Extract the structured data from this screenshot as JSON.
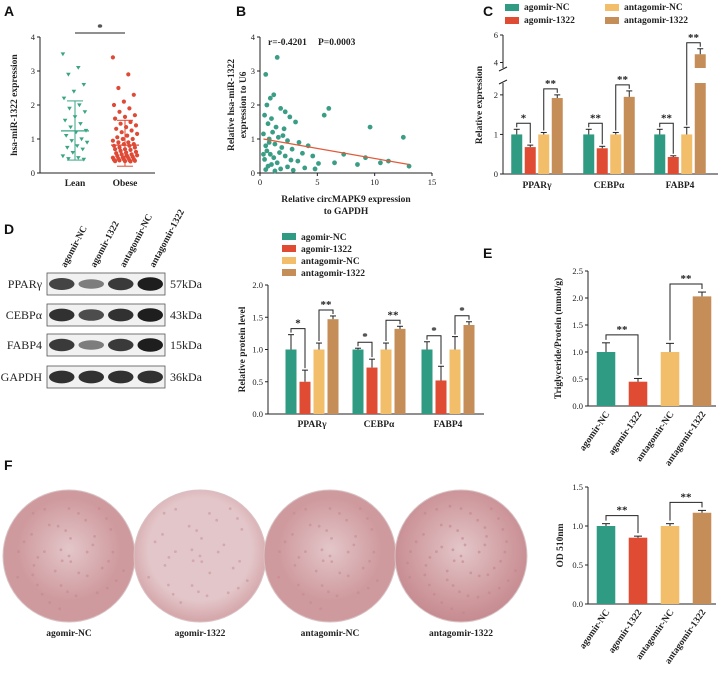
{
  "colors": {
    "teal": "#2e9b82",
    "red": "#e04b34",
    "yellow": "#f2be6a",
    "brown": "#c58d57",
    "scatter": "#3a9d86",
    "fit": "#e25a3a",
    "lean": "#3aa585",
    "obese": "#de4a36",
    "dish_base": "#cf9a9e",
    "dish_light": "#e3c6c9",
    "dish_dark": "#c2868c"
  },
  "panel_labels": [
    "A",
    "B",
    "C",
    "D",
    "E",
    "F"
  ],
  "conditions": [
    "agomir-NC",
    "agomir-1322",
    "antagomir-NC",
    "antagomir-1322"
  ],
  "chart_data": [
    {
      "id": "A",
      "type": "scatter",
      "title": "",
      "ylabel": "hsa-miR-1322 expression",
      "xlabel": "",
      "categories": [
        "Lean",
        "Obese"
      ],
      "ylim": [
        0,
        4
      ],
      "yticks": [
        0,
        1,
        2,
        3,
        4
      ],
      "groups": [
        {
          "name": "Lean",
          "mean": 1.24,
          "sd_low": 0.38,
          "sd_high": 2.12,
          "points": [
            3.5,
            3.1,
            2.9,
            2.6,
            2.4,
            2.2,
            2.0,
            1.9,
            1.8,
            1.65,
            1.55,
            1.45,
            1.35,
            1.25,
            1.2,
            1.1,
            1.0,
            0.95,
            0.9,
            0.8,
            0.75,
            0.7,
            0.6,
            0.5,
            0.45,
            0.42,
            0.4
          ]
        },
        {
          "name": "Obese",
          "mean": 0.82,
          "sd_low": 0.2,
          "sd_high": 1.55,
          "points": [
            3.4,
            2.9,
            2.5,
            2.3,
            2.1,
            2.0,
            1.9,
            1.8,
            1.7,
            1.65,
            1.6,
            1.5,
            1.45,
            1.4,
            1.35,
            1.3,
            1.25,
            1.2,
            1.15,
            1.1,
            1.05,
            1.0,
            1.0,
            0.95,
            0.9,
            0.9,
            0.85,
            0.85,
            0.8,
            0.8,
            0.75,
            0.75,
            0.7,
            0.7,
            0.68,
            0.65,
            0.62,
            0.6,
            0.58,
            0.55,
            0.55,
            0.52,
            0.5,
            0.5,
            0.48,
            0.46,
            0.45,
            0.44,
            0.42,
            0.41,
            0.4,
            0.39,
            0.38,
            0.37,
            0.36,
            0.35,
            0.35,
            0.34
          ]
        }
      ],
      "significance": "*"
    },
    {
      "id": "B",
      "type": "scatter",
      "title": "",
      "annotation_r": "r=-0.4201",
      "annotation_p": "P=0.0003",
      "xlabel_line1": "Relative circMAPK9 expression",
      "xlabel_line2": "to GAPDH",
      "ylabel_line1": "Relative hsa-miR-1322",
      "ylabel_line2": "expression to U6",
      "xlim": [
        0,
        15
      ],
      "ylim": [
        0,
        4
      ],
      "xticks": [
        0,
        5,
        10,
        15
      ],
      "yticks": [
        0,
        1,
        2,
        3,
        4
      ],
      "fit": {
        "x": [
          0.3,
          13
        ],
        "y": [
          1.0,
          0.25
        ]
      },
      "points": [
        [
          1.5,
          3.4
        ],
        [
          0.5,
          2.9
        ],
        [
          1.2,
          2.3
        ],
        [
          0.9,
          2.2
        ],
        [
          0.6,
          2.0
        ],
        [
          1.8,
          1.9
        ],
        [
          2.2,
          1.8
        ],
        [
          0.4,
          1.7
        ],
        [
          2.6,
          1.65
        ],
        [
          1.0,
          1.6
        ],
        [
          3.1,
          1.5
        ],
        [
          0.7,
          1.45
        ],
        [
          1.4,
          1.35
        ],
        [
          5.6,
          1.7
        ],
        [
          6.0,
          1.9
        ],
        [
          9.6,
          1.35
        ],
        [
          12.5,
          1.05
        ],
        [
          1.1,
          1.2
        ],
        [
          0.3,
          1.15
        ],
        [
          2.0,
          1.1
        ],
        [
          1.6,
          1.05
        ],
        [
          0.8,
          1.0
        ],
        [
          2.4,
          0.95
        ],
        [
          3.4,
          0.9
        ],
        [
          1.3,
          0.85
        ],
        [
          0.5,
          0.8
        ],
        [
          1.9,
          0.75
        ],
        [
          4.2,
          0.8
        ],
        [
          2.8,
          0.7
        ],
        [
          0.6,
          0.65
        ],
        [
          1.7,
          0.6
        ],
        [
          3.7,
          0.58
        ],
        [
          0.9,
          0.55
        ],
        [
          2.2,
          0.5
        ],
        [
          4.6,
          0.5
        ],
        [
          7.3,
          0.55
        ],
        [
          1.2,
          0.45
        ],
        [
          0.4,
          0.4
        ],
        [
          2.7,
          0.38
        ],
        [
          3.3,
          0.35
        ],
        [
          1.5,
          0.3
        ],
        [
          5.1,
          0.28
        ],
        [
          6.5,
          0.3
        ],
        [
          8.5,
          0.25
        ],
        [
          9.2,
          0.45
        ],
        [
          11.2,
          0.35
        ],
        [
          1.0,
          0.25
        ],
        [
          0.7,
          0.2
        ],
        [
          2.4,
          0.18
        ],
        [
          3.9,
          0.15
        ],
        [
          1.8,
          0.12
        ],
        [
          4.8,
          0.12
        ],
        [
          0.5,
          0.1
        ],
        [
          2.9,
          0.08
        ],
        [
          1.3,
          0.06
        ],
        [
          13.0,
          0.2
        ],
        [
          0.8,
          0.9
        ],
        [
          2.1,
          1.3
        ],
        [
          0.3,
          0.55
        ],
        [
          10.5,
          0.3
        ]
      ]
    },
    {
      "id": "C",
      "type": "bar",
      "title": "",
      "ylabel": "Relative expression",
      "categories": [
        "PPARγ",
        "CEBPα",
        "FABP4"
      ],
      "ylim": [
        0,
        6
      ],
      "axis_break": [
        2.3,
        3.6
      ],
      "yticks": [
        0,
        1,
        2,
        4,
        6
      ],
      "series": [
        {
          "name": "agomir-NC",
          "values": [
            1.0,
            1.0,
            1.0
          ],
          "errors": [
            0.13,
            0.13,
            0.13
          ]
        },
        {
          "name": "agomir-1322",
          "values": [
            0.68,
            0.65,
            0.43
          ],
          "errors": [
            0.05,
            0.05,
            0.03
          ]
        },
        {
          "name": "antagomir-NC",
          "values": [
            1.0,
            1.0,
            1.0
          ],
          "errors": [
            0.05,
            0.05,
            0.18
          ]
        },
        {
          "name": "antagomir-1322",
          "values": [
            1.92,
            1.95,
            4.6
          ],
          "errors": [
            0.08,
            0.15,
            0.4
          ]
        }
      ],
      "significance": [
        [
          "*",
          "**"
        ],
        [
          "**",
          "**"
        ],
        [
          "**",
          "**"
        ]
      ]
    },
    {
      "id": "D",
      "type": "bar",
      "title": "",
      "ylabel": "Relative protein level",
      "categories": [
        "PPARγ",
        "CEBPα",
        "FABP4"
      ],
      "ylim": [
        0,
        2.0
      ],
      "yticks": [
        0.0,
        0.5,
        1.0,
        1.5,
        2.0
      ],
      "series": [
        {
          "name": "agomir-NC",
          "values": [
            1.0,
            1.0,
            1.0
          ],
          "errors": [
            0.23,
            0.02,
            0.12
          ]
        },
        {
          "name": "agomir-1322",
          "values": [
            0.5,
            0.72,
            0.52
          ],
          "errors": [
            0.18,
            0.13,
            0.22
          ]
        },
        {
          "name": "antagomir-NC",
          "values": [
            1.0,
            1.0,
            1.0
          ],
          "errors": [
            0.1,
            0.1,
            0.2
          ]
        },
        {
          "name": "antagomir-1322",
          "values": [
            1.47,
            1.32,
            1.38
          ],
          "errors": [
            0.05,
            0.04,
            0.05
          ]
        }
      ],
      "significance": [
        [
          "*",
          "**"
        ],
        [
          "*",
          "**"
        ],
        [
          "*",
          "*"
        ]
      ]
    },
    {
      "id": "E",
      "type": "bar",
      "title": "",
      "ylabel": "Triglyceride/Protein (mmol/g)",
      "categories": [
        "agomir-NC",
        "agomir-1322",
        "antagomir-NC",
        "antagomir-1322"
      ],
      "ylim": [
        0,
        2.5
      ],
      "yticks": [
        0.0,
        0.5,
        1.0,
        1.5,
        2.0,
        2.5
      ],
      "values": [
        1.0,
        0.45,
        1.0,
        2.03
      ],
      "errors": [
        0.17,
        0.06,
        0.16,
        0.08
      ],
      "significance": [
        "**",
        "**"
      ]
    },
    {
      "id": "F",
      "type": "bar",
      "title": "",
      "ylabel": "OD 510nm",
      "categories": [
        "agomir-NC",
        "agomir-1322",
        "antagomir-NC",
        "antagomir-1322"
      ],
      "ylim": [
        0,
        1.5
      ],
      "yticks": [
        0.0,
        0.5,
        1.0,
        1.5
      ],
      "values": [
        1.0,
        0.85,
        1.0,
        1.17
      ],
      "errors": [
        0.03,
        0.02,
        0.03,
        0.03
      ],
      "significance": [
        "**",
        "**"
      ]
    }
  ],
  "western_blot": {
    "lanes": [
      "agomir-NC",
      "agomir-1322",
      "antagomir-NC",
      "antagomir-1322"
    ],
    "bands": [
      {
        "protein": "PPARγ",
        "kda": "57kDa",
        "intensity": [
          0.75,
          0.45,
          0.8,
          0.95
        ]
      },
      {
        "protein": "CEBPα",
        "kda": "43kDa",
        "intensity": [
          0.85,
          0.7,
          0.85,
          0.95
        ]
      },
      {
        "protein": "FABP4",
        "kda": "15kDa",
        "intensity": [
          0.8,
          0.45,
          0.8,
          0.95
        ]
      },
      {
        "protein": "GAPDH",
        "kda": "36kDa",
        "intensity": [
          0.85,
          0.85,
          0.85,
          0.85
        ]
      }
    ]
  },
  "oil_red_dishes": {
    "labels": [
      "agomir-NC",
      "agomir-1322",
      "antagomir-NC",
      "antagomir-1322"
    ],
    "stain_level": [
      0.6,
      0.35,
      0.55,
      0.85
    ]
  }
}
